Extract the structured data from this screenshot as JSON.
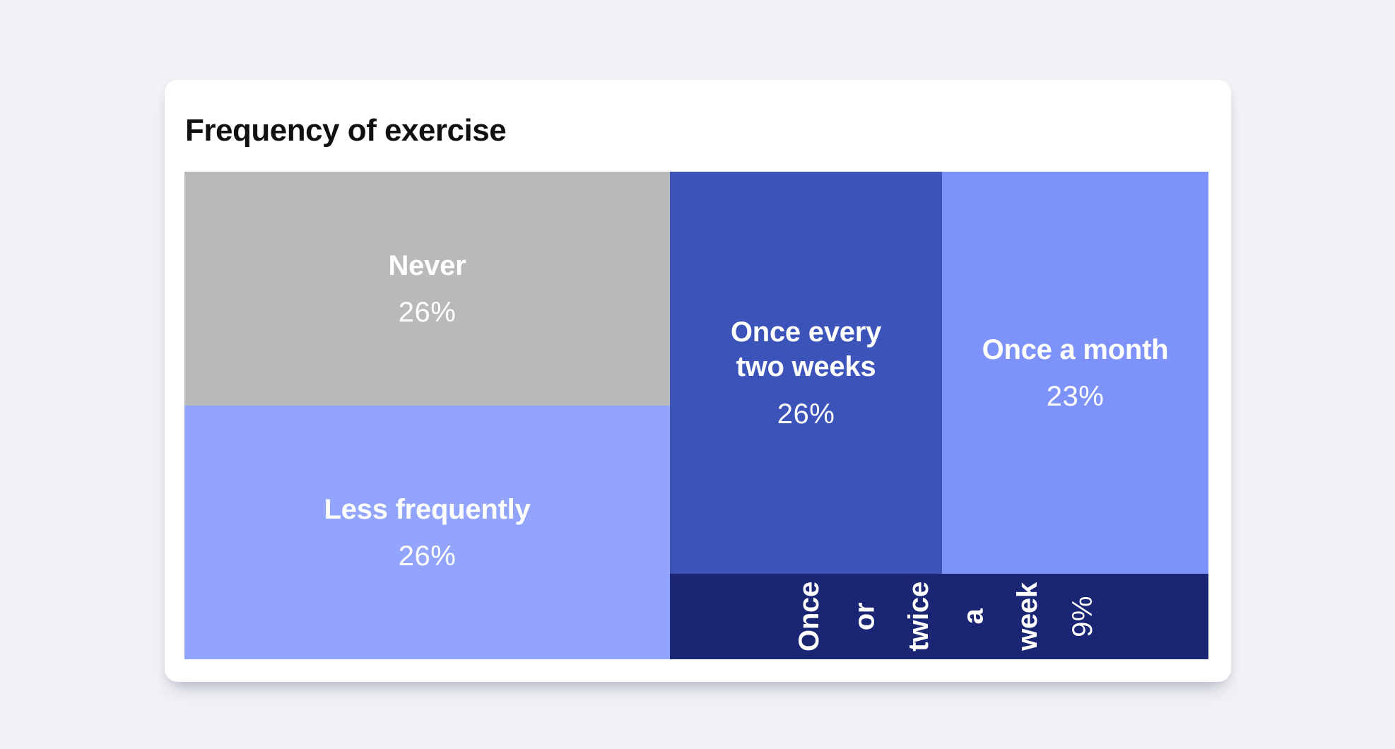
{
  "title": "Frequency of exercise",
  "page": {
    "background_color": "#f1f2f6",
    "card_color": "#ffffff",
    "title_color": "#111111",
    "label_text_color": "#ffffff"
  },
  "treemap": {
    "cells": [
      {
        "label": "Never",
        "value": "26%",
        "color": "#b9b9b9"
      },
      {
        "label": "Less frequently",
        "value": "26%",
        "color": "#92a4fc"
      },
      {
        "label": "Once every two weeks",
        "value": "26%",
        "color": "#3c53b9"
      },
      {
        "label": "Once a month",
        "value": "23%",
        "color": "#7e93fa"
      },
      {
        "label": "Once or twice a week",
        "value": "9%",
        "color": "#1a2673",
        "words": [
          "Once",
          "or",
          "twice",
          "a",
          "week"
        ]
      }
    ]
  },
  "chart_data": {
    "type": "treemap",
    "title": "Frequency of exercise",
    "categories": [
      "Never",
      "Less frequently",
      "Once every two weeks",
      "Once a month",
      "Once or twice a week"
    ],
    "values": [
      26,
      26,
      26,
      23,
      9
    ],
    "unit": "percent",
    "value_labels": [
      "26%",
      "26%",
      "26%",
      "23%",
      "9%"
    ],
    "colors": [
      "#b9b9b9",
      "#92a4fc",
      "#3c53b9",
      "#7e93fa",
      "#1a2673"
    ],
    "layout": "Never and Less frequently stacked in left column; Once every two weeks and Once a month side by side at right; Once or twice a week as bottom strip spanning the right group with vertically rotated label"
  }
}
